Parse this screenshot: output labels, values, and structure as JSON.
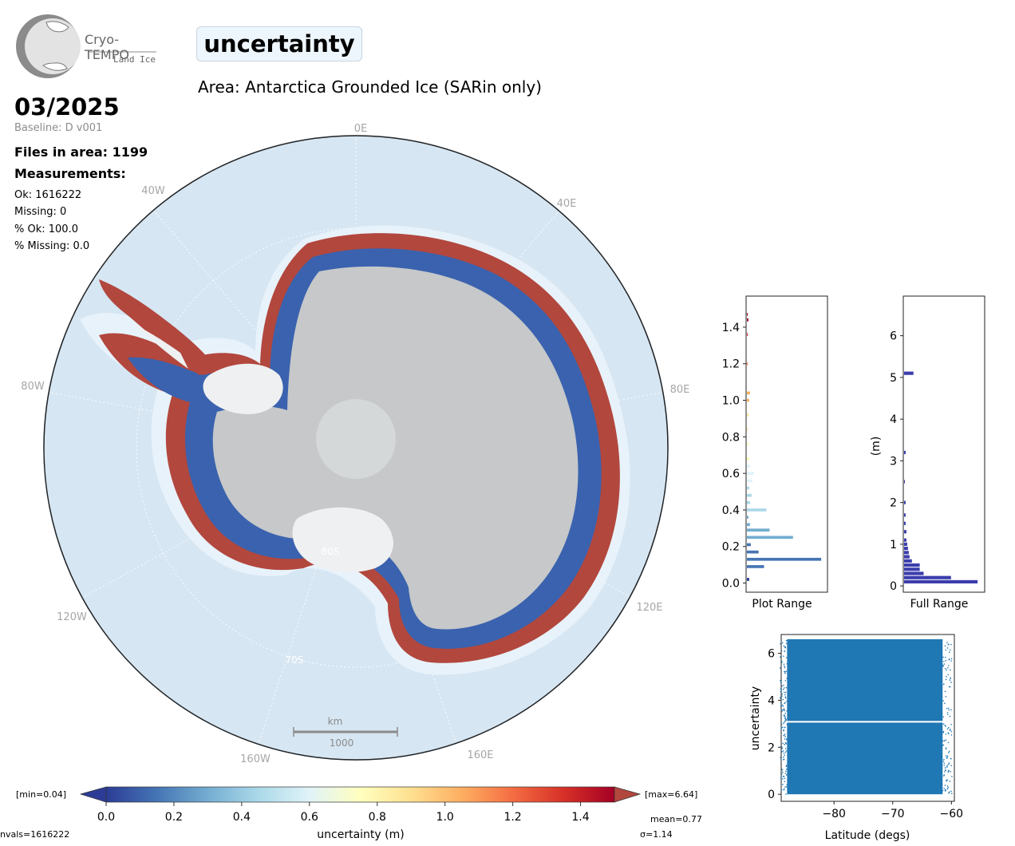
{
  "logo": {
    "name": "Cryo-TEMPO",
    "product": "Land Ice"
  },
  "header": {
    "parameter": "uncertainty",
    "area": "Area: Antarctica Grounded Ice (SARin only)",
    "date": "03/2025",
    "baseline": "Baseline: D v001",
    "files": "Files in area: 1199",
    "measurements_heading": "Measurements:",
    "stats": [
      "Ok: 1616222",
      "Missing: 0",
      "% Ok: 100.0",
      "% Missing: 0.0"
    ]
  },
  "map": {
    "lon_labels": [
      "0E",
      "40E",
      "80E",
      "120E",
      "160E",
      "160W",
      "120W",
      "80W",
      "40W"
    ],
    "lat_labels": [
      "70S",
      "80S"
    ],
    "scale_bar": {
      "unit": "km",
      "value": "1000"
    },
    "colors": {
      "ocean": "#d6e6f3",
      "ice": "#c9cbcc",
      "shelf": "#eef0f1",
      "low": "#3a62ae",
      "high": "#b2473e"
    }
  },
  "colorbar": {
    "min_label": "[min=0.04]",
    "max_label": "[max=6.64]",
    "ticks": [
      "0.0",
      "0.2",
      "0.4",
      "0.6",
      "0.8",
      "1.0",
      "1.2",
      "1.4"
    ],
    "label": "uncertainty (m)",
    "range": [
      0,
      1.5
    ],
    "nvals": "nvals=1616222",
    "mean": "mean=0.77",
    "sigma": "σ=1.14",
    "stops": [
      "#2c3c96",
      "#4575b4",
      "#74add1",
      "#abd9e9",
      "#e0f3f8",
      "#ffffbf",
      "#fee090",
      "#fdae61",
      "#f46d43",
      "#d73027",
      "#a50026"
    ]
  },
  "chart_data": [
    {
      "type": "bar",
      "orientation": "horizontal",
      "xlabel": "Plot Range",
      "ylim": [
        -0.05,
        1.57
      ],
      "yticks": [
        "0.0",
        "0.2",
        "0.4",
        "0.6",
        "0.8",
        "1.0",
        "1.2",
        "1.4"
      ],
      "bins": [
        {
          "y": 0.02,
          "w": 0.03
        },
        {
          "y": 0.09,
          "w": 0.22
        },
        {
          "y": 0.13,
          "w": 0.95
        },
        {
          "y": 0.17,
          "w": 0.15
        },
        {
          "y": 0.21,
          "w": 0.05
        },
        {
          "y": 0.25,
          "w": 0.59
        },
        {
          "y": 0.29,
          "w": 0.29
        },
        {
          "y": 0.32,
          "w": 0.04
        },
        {
          "y": 0.36,
          "w": 0.02
        },
        {
          "y": 0.4,
          "w": 0.25
        },
        {
          "y": 0.44,
          "w": 0.04
        },
        {
          "y": 0.48,
          "w": 0.06
        },
        {
          "y": 0.52,
          "w": 0.03
        },
        {
          "y": 0.56,
          "w": 0.07
        },
        {
          "y": 0.6,
          "w": 0.09
        },
        {
          "y": 0.64,
          "w": 0.04
        },
        {
          "y": 0.68,
          "w": 0.03
        },
        {
          "y": 0.76,
          "w": 0.02
        },
        {
          "y": 0.84,
          "w": 0.01
        },
        {
          "y": 0.92,
          "w": 0.02
        },
        {
          "y": 1.0,
          "w": 0.03
        },
        {
          "y": 1.04,
          "w": 0.04
        },
        {
          "y": 1.2,
          "w": 0.01
        },
        {
          "y": 1.36,
          "w": 0.01
        },
        {
          "y": 1.44,
          "w": 0.02
        },
        {
          "y": 1.47,
          "w": 0.01
        }
      ],
      "bar_height": 0.016
    },
    {
      "type": "bar",
      "orientation": "horizontal",
      "xlabel": "Full Range",
      "ylabel": "(m)",
      "ylim": [
        -0.15,
        6.95
      ],
      "yticks": [
        "0",
        "1",
        "2",
        "3",
        "4",
        "5",
        "6"
      ],
      "color": "#3b3dac",
      "bins": [
        {
          "y": 0.1,
          "w": 0.94
        },
        {
          "y": 0.2,
          "w": 0.6
        },
        {
          "y": 0.3,
          "w": 0.25
        },
        {
          "y": 0.4,
          "w": 0.2
        },
        {
          "y": 0.5,
          "w": 0.2
        },
        {
          "y": 0.6,
          "w": 0.1
        },
        {
          "y": 0.7,
          "w": 0.07
        },
        {
          "y": 0.8,
          "w": 0.06
        },
        {
          "y": 0.9,
          "w": 0.05
        },
        {
          "y": 1.0,
          "w": 0.04
        },
        {
          "y": 1.1,
          "w": 0.03
        },
        {
          "y": 1.3,
          "w": 0.03
        },
        {
          "y": 1.5,
          "w": 0.02
        },
        {
          "y": 1.7,
          "w": 0.02
        },
        {
          "y": 2.0,
          "w": 0.02
        },
        {
          "y": 2.5,
          "w": 0.01
        },
        {
          "y": 3.2,
          "w": 0.02
        },
        {
          "y": 5.1,
          "w": 0.12
        }
      ],
      "bar_height": 0.08
    },
    {
      "type": "scatter",
      "xlabel": "Latitude (degs)",
      "ylabel": "uncertainty",
      "xlim": [
        -89,
        -59.5
      ],
      "ylim": [
        -0.3,
        6.8
      ],
      "xticks": [
        "−80",
        "−70",
        "−60"
      ],
      "xtick_values": [
        -80,
        -70,
        -60
      ],
      "yticks": [
        "0",
        "2",
        "4",
        "6"
      ],
      "ytick_values": [
        0,
        2,
        4,
        6
      ],
      "color": "#1f77b4",
      "x_range": [
        -88,
        -61.5
      ],
      "y_range": [
        0.0,
        6.6
      ],
      "gap": [
        3.05,
        3.12
      ]
    }
  ]
}
